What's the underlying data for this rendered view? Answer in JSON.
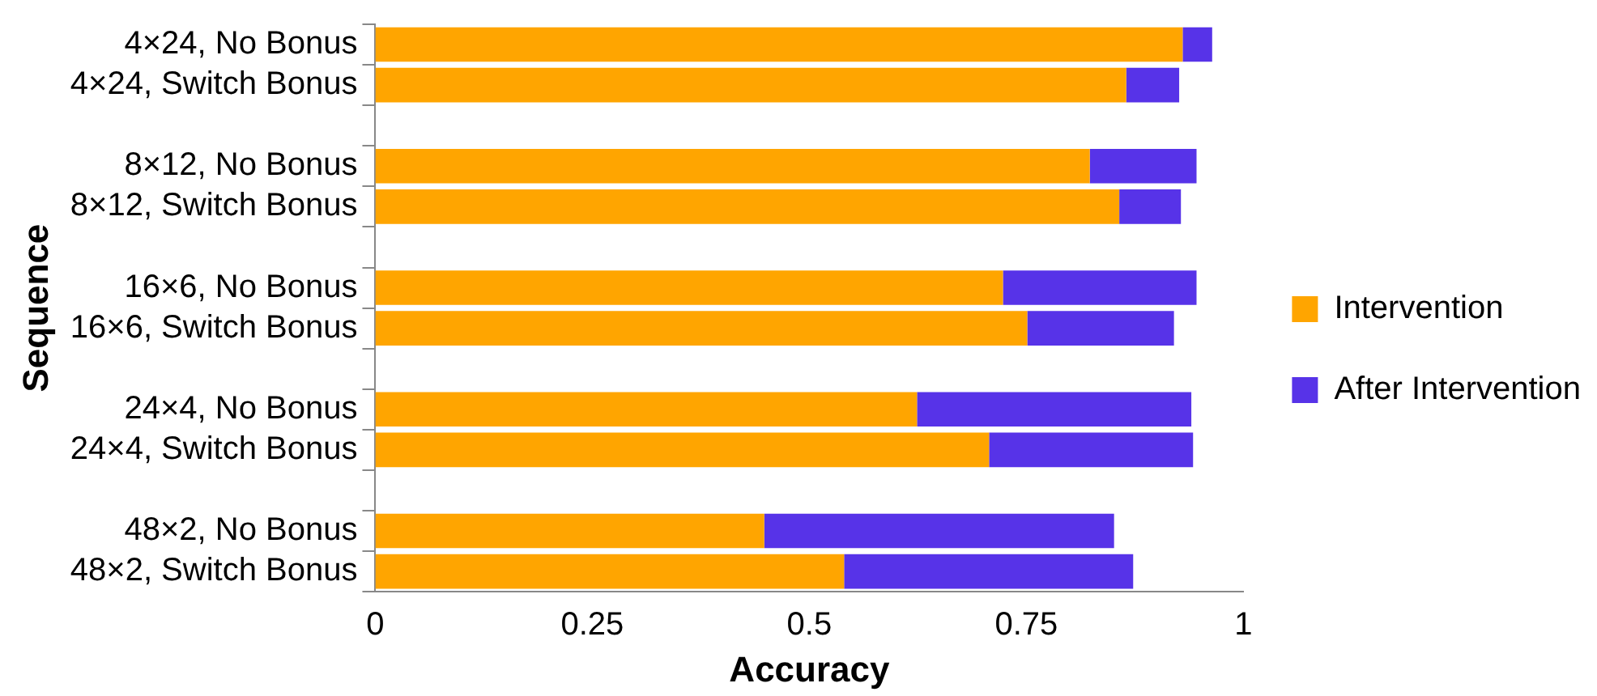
{
  "chart_data": {
    "type": "bar",
    "orientation": "horizontal",
    "stacked": true,
    "xlabel": "Accuracy",
    "ylabel": "Sequence",
    "categories": [
      "4×24, No Bonus",
      "4×24, Switch Bonus",
      null,
      "8×12, No Bonus",
      "8×12, Switch Bonus",
      null,
      "16×6, No Bonus",
      "16×6, Switch Bonus",
      null,
      "24×4, No Bonus",
      "24×4, Switch Bonus",
      null,
      "48×2, No Bonus",
      "48×2, Switch Bonus"
    ],
    "series": [
      {
        "name": "Intervention",
        "color": "#ffa500",
        "values": [
          0.93,
          0.865,
          null,
          0.823,
          0.857,
          null,
          0.723,
          0.751,
          null,
          0.624,
          0.707,
          null,
          0.448,
          0.54
        ]
      },
      {
        "name": "After Intervention",
        "color": "#5733e8",
        "values": [
          0.034,
          0.061,
          null,
          0.123,
          0.071,
          null,
          0.223,
          0.169,
          null,
          0.316,
          0.235,
          null,
          0.403,
          0.333
        ]
      }
    ],
    "xlim": [
      0,
      1
    ],
    "xticks": [
      0,
      0.25,
      0.5,
      0.75,
      1
    ],
    "grid": false,
    "legend": "right"
  }
}
